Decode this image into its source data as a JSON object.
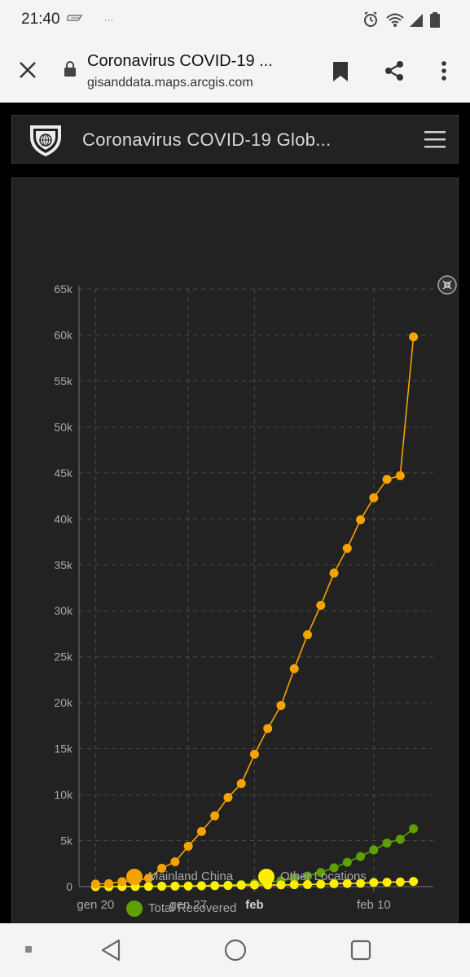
{
  "status_bar": {
    "time": "21:40",
    "extra": "···"
  },
  "browser": {
    "title": "Coronavirus COVID-19 ...",
    "url": "gisanddata.maps.arcgis.com"
  },
  "app": {
    "title": "Coronavirus COVID-19 Glob..."
  },
  "colors": {
    "mainland": "#f5a300",
    "other": "#ffee00",
    "recovered": "#5ea000"
  },
  "chart_data": {
    "type": "line",
    "ylim": [
      0,
      65000
    ],
    "yticks": [
      "0",
      "5k",
      "10k",
      "15k",
      "20k",
      "25k",
      "30k",
      "35k",
      "40k",
      "45k",
      "50k",
      "55k",
      "60k",
      "65k"
    ],
    "xticks": [
      {
        "label": "gen 20",
        "day": 0
      },
      {
        "label": "gen 27",
        "day": 7
      },
      {
        "label": "feb",
        "day": 12,
        "bold": true
      },
      {
        "label": "feb 10",
        "day": 21
      }
    ],
    "x_days": [
      0,
      1,
      2,
      3,
      4,
      5,
      6,
      7,
      8,
      9,
      10,
      11,
      12,
      13,
      14,
      15,
      16,
      17,
      18,
      19,
      20,
      21,
      22,
      23,
      24
    ],
    "series": [
      {
        "name": "Mainland China",
        "color": "#f5a300",
        "values": [
          278,
          326,
          547,
          639,
          916,
          2000,
          2700,
          4400,
          6000,
          7700,
          9700,
          11200,
          14400,
          17200,
          19700,
          23700,
          27400,
          30600,
          34100,
          36800,
          39900,
          42300,
          44300,
          44700,
          59800
        ]
      },
      {
        "name": "Other Locations",
        "color": "#ffee00",
        "values": [
          4,
          6,
          8,
          14,
          25,
          40,
          57,
          64,
          87,
          105,
          118,
          153,
          173,
          183,
          188,
          212,
          227,
          265,
          317,
          343,
          361,
          457,
          476,
          512,
          565
        ]
      },
      {
        "name": "Total Recovered",
        "color": "#5ea000",
        "values": [
          0,
          0,
          28,
          30,
          36,
          49,
          54,
          63,
          110,
          126,
          171,
          243,
          328,
          475,
          632,
          892,
          1153,
          1540,
          2050,
          2649,
          3281,
          3996,
          4740,
          5150,
          6295
        ]
      }
    ]
  }
}
